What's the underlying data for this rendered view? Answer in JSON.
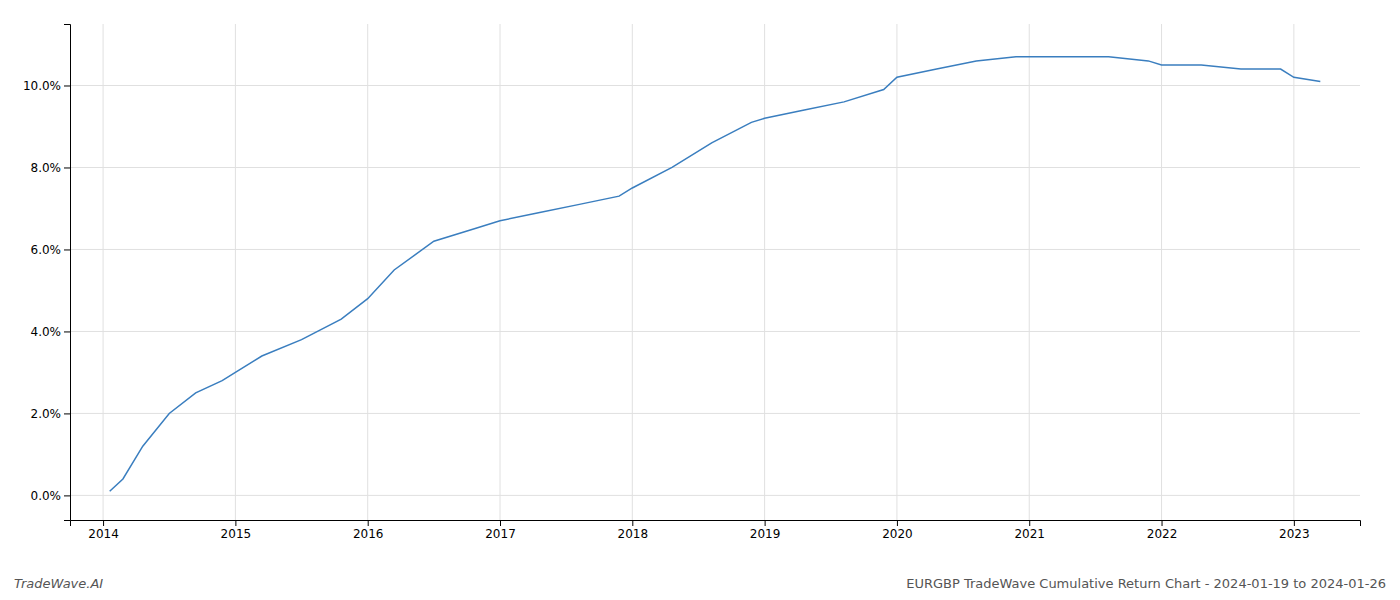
{
  "chart_data": {
    "type": "line",
    "annotations": [
      "TradeWave.AI",
      "EURGBP TradeWave Cumulative Return Chart - 2024-01-19 to 2024-01-26"
    ],
    "x": [
      2014.05,
      2014.15,
      2014.3,
      2014.5,
      2014.7,
      2014.9,
      2015.0,
      2015.2,
      2015.5,
      2015.8,
      2016.0,
      2016.2,
      2016.5,
      2016.8,
      2017.0,
      2017.3,
      2017.6,
      2017.9,
      2018.0,
      2018.3,
      2018.6,
      2018.9,
      2019.0,
      2019.3,
      2019.6,
      2019.9,
      2020.0,
      2020.3,
      2020.6,
      2020.9,
      2021.0,
      2021.3,
      2021.6,
      2021.9,
      2022.0,
      2022.3,
      2022.6,
      2022.9,
      2023.0,
      2023.2
    ],
    "values": [
      0.001,
      0.004,
      0.012,
      0.02,
      0.025,
      0.028,
      0.03,
      0.034,
      0.038,
      0.043,
      0.048,
      0.055,
      0.062,
      0.065,
      0.067,
      0.069,
      0.071,
      0.073,
      0.075,
      0.08,
      0.086,
      0.091,
      0.092,
      0.094,
      0.096,
      0.099,
      0.102,
      0.104,
      0.106,
      0.107,
      0.107,
      0.107,
      0.107,
      0.106,
      0.105,
      0.105,
      0.104,
      0.104,
      0.102,
      0.101
    ],
    "color": "#3a7ebf",
    "xlim": [
      2013.75,
      2023.5
    ],
    "ylim": [
      -0.006,
      0.115
    ],
    "xticks": [
      2014,
      2015,
      2016,
      2017,
      2018,
      2019,
      2020,
      2021,
      2022,
      2023
    ],
    "yticks": [
      {
        "value": 0.0,
        "label": "0.0%"
      },
      {
        "value": 0.02,
        "label": "2.0%"
      },
      {
        "value": 0.04,
        "label": "4.0%"
      },
      {
        "value": 0.06,
        "label": "6.0%"
      },
      {
        "value": 0.08,
        "label": "8.0%"
      },
      {
        "value": 0.1,
        "label": "10.0%"
      }
    ],
    "grid": true
  }
}
